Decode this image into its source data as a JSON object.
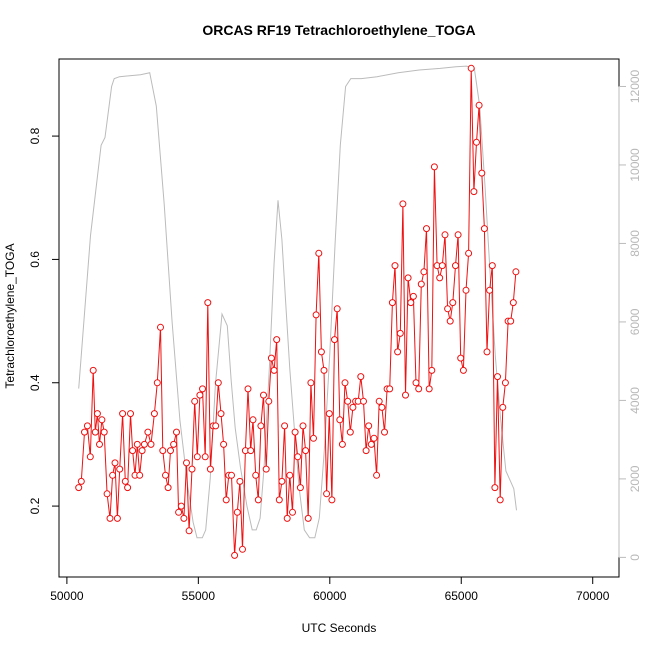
{
  "chart_data": {
    "type": "line",
    "title": "ORCAS RF19 Tetrachloroethylene_TOGA",
    "xlabel": "UTC Seconds",
    "ylabel": "Tetrachloroethylene_TOGA",
    "xlim": [
      49700,
      71000
    ],
    "ylim": [
      0.085,
      0.925
    ],
    "y2lim": [
      -500,
      12700
    ],
    "x_ticks": [
      50000,
      55000,
      60000,
      65000,
      70000
    ],
    "y_ticks": [
      0.2,
      0.4,
      0.6,
      0.8
    ],
    "y2_ticks": [
      0,
      2000,
      4000,
      6000,
      8000,
      10000,
      12000
    ],
    "colors": {
      "series": "#ee1111",
      "altitude": "#bbbbbb",
      "axis": "#000000",
      "right_axis": "#bbbbbb"
    },
    "series": [
      {
        "axis": "left",
        "points": [
          [
            50450,
            0.23
          ],
          [
            50550,
            0.24
          ],
          [
            50670,
            0.32
          ],
          [
            50780,
            0.33
          ],
          [
            50890,
            0.28
          ],
          [
            51000,
            0.42
          ],
          [
            51080,
            0.32
          ],
          [
            51160,
            0.35
          ],
          [
            51240,
            0.3
          ],
          [
            51330,
            0.34
          ],
          [
            51420,
            0.32
          ],
          [
            51530,
            0.22
          ],
          [
            51640,
            0.18
          ],
          [
            51740,
            0.25
          ],
          [
            51830,
            0.27
          ],
          [
            51920,
            0.18
          ],
          [
            52010,
            0.26
          ],
          [
            52120,
            0.35
          ],
          [
            52220,
            0.24
          ],
          [
            52310,
            0.23
          ],
          [
            52420,
            0.35
          ],
          [
            52500,
            0.29
          ],
          [
            52590,
            0.25
          ],
          [
            52680,
            0.3
          ],
          [
            52770,
            0.25
          ],
          [
            52860,
            0.29
          ],
          [
            52950,
            0.3
          ],
          [
            53080,
            0.32
          ],
          [
            53200,
            0.3
          ],
          [
            53330,
            0.35
          ],
          [
            53440,
            0.4
          ],
          [
            53560,
            0.49
          ],
          [
            53650,
            0.29
          ],
          [
            53750,
            0.25
          ],
          [
            53850,
            0.23
          ],
          [
            53940,
            0.29
          ],
          [
            54060,
            0.3
          ],
          [
            54170,
            0.32
          ],
          [
            54250,
            0.19
          ],
          [
            54350,
            0.2
          ],
          [
            54450,
            0.18
          ],
          [
            54550,
            0.27
          ],
          [
            54650,
            0.16
          ],
          [
            54760,
            0.26
          ],
          [
            54860,
            0.37
          ],
          [
            54960,
            0.28
          ],
          [
            55060,
            0.38
          ],
          [
            55160,
            0.39
          ],
          [
            55260,
            0.28
          ],
          [
            55360,
            0.53
          ],
          [
            55460,
            0.26
          ],
          [
            55560,
            0.33
          ],
          [
            55660,
            0.33
          ],
          [
            55760,
            0.4
          ],
          [
            55860,
            0.35
          ],
          [
            55960,
            0.3
          ],
          [
            56060,
            0.21
          ],
          [
            56160,
            0.25
          ],
          [
            56260,
            0.25
          ],
          [
            56380,
            0.12
          ],
          [
            56480,
            0.19
          ],
          [
            56580,
            0.24
          ],
          [
            56680,
            0.13
          ],
          [
            56790,
            0.29
          ],
          [
            56890,
            0.39
          ],
          [
            56990,
            0.29
          ],
          [
            57080,
            0.34
          ],
          [
            57180,
            0.25
          ],
          [
            57280,
            0.21
          ],
          [
            57380,
            0.33
          ],
          [
            57480,
            0.38
          ],
          [
            57580,
            0.26
          ],
          [
            57680,
            0.37
          ],
          [
            57780,
            0.44
          ],
          [
            57880,
            0.42
          ],
          [
            57980,
            0.47
          ],
          [
            58080,
            0.21
          ],
          [
            58180,
            0.24
          ],
          [
            58280,
            0.33
          ],
          [
            58380,
            0.18
          ],
          [
            58480,
            0.25
          ],
          [
            58580,
            0.19
          ],
          [
            58680,
            0.32
          ],
          [
            58780,
            0.28
          ],
          [
            58880,
            0.23
          ],
          [
            58980,
            0.33
          ],
          [
            59080,
            0.29
          ],
          [
            59180,
            0.18
          ],
          [
            59280,
            0.4
          ],
          [
            59380,
            0.31
          ],
          [
            59480,
            0.51
          ],
          [
            59580,
            0.61
          ],
          [
            59680,
            0.45
          ],
          [
            59780,
            0.42
          ],
          [
            59880,
            0.22
          ],
          [
            59980,
            0.35
          ],
          [
            60080,
            0.21
          ],
          [
            60180,
            0.47
          ],
          [
            60280,
            0.52
          ],
          [
            60380,
            0.34
          ],
          [
            60480,
            0.3
          ],
          [
            60580,
            0.4
          ],
          [
            60680,
            0.37
          ],
          [
            60780,
            0.32
          ],
          [
            60880,
            0.36
          ],
          [
            60980,
            0.37
          ],
          [
            61080,
            0.37
          ],
          [
            61180,
            0.41
          ],
          [
            61280,
            0.37
          ],
          [
            61380,
            0.29
          ],
          [
            61480,
            0.33
          ],
          [
            61580,
            0.3
          ],
          [
            61680,
            0.31
          ],
          [
            61780,
            0.25
          ],
          [
            61880,
            0.37
          ],
          [
            61980,
            0.36
          ],
          [
            62080,
            0.32
          ],
          [
            62180,
            0.39
          ],
          [
            62280,
            0.39
          ],
          [
            62380,
            0.53
          ],
          [
            62480,
            0.59
          ],
          [
            62580,
            0.45
          ],
          [
            62680,
            0.48
          ],
          [
            62780,
            0.69
          ],
          [
            62880,
            0.38
          ],
          [
            62980,
            0.57
          ],
          [
            63080,
            0.53
          ],
          [
            63180,
            0.54
          ],
          [
            63280,
            0.4
          ],
          [
            63380,
            0.39
          ],
          [
            63480,
            0.56
          ],
          [
            63580,
            0.58
          ],
          [
            63680,
            0.65
          ],
          [
            63780,
            0.39
          ],
          [
            63880,
            0.42
          ],
          [
            63980,
            0.75
          ],
          [
            64080,
            0.59
          ],
          [
            64180,
            0.57
          ],
          [
            64280,
            0.59
          ],
          [
            64380,
            0.64
          ],
          [
            64480,
            0.52
          ],
          [
            64580,
            0.5
          ],
          [
            64680,
            0.53
          ],
          [
            64780,
            0.59
          ],
          [
            64880,
            0.64
          ],
          [
            64980,
            0.44
          ],
          [
            65080,
            0.42
          ],
          [
            65180,
            0.55
          ],
          [
            65280,
            0.61
          ],
          [
            65380,
            0.91
          ],
          [
            65480,
            0.71
          ],
          [
            65580,
            0.79
          ],
          [
            65680,
            0.85
          ],
          [
            65780,
            0.74
          ],
          [
            65880,
            0.65
          ],
          [
            65980,
            0.45
          ],
          [
            66080,
            0.55
          ],
          [
            66180,
            0.59
          ],
          [
            66280,
            0.23
          ],
          [
            66380,
            0.41
          ],
          [
            66480,
            0.21
          ],
          [
            66580,
            0.36
          ],
          [
            66680,
            0.4
          ],
          [
            66780,
            0.5
          ],
          [
            66880,
            0.5
          ],
          [
            66980,
            0.53
          ],
          [
            67080,
            0.58
          ]
        ]
      },
      {
        "axis": "right",
        "points": [
          [
            50450,
            4300
          ],
          [
            50900,
            8200
          ],
          [
            51300,
            10500
          ],
          [
            51450,
            10700
          ],
          [
            51700,
            12000
          ],
          [
            51800,
            12200
          ],
          [
            52000,
            12250
          ],
          [
            52800,
            12300
          ],
          [
            53150,
            12350
          ],
          [
            53400,
            11500
          ],
          [
            53700,
            9000
          ],
          [
            54000,
            6000
          ],
          [
            54300,
            3500
          ],
          [
            54600,
            1800
          ],
          [
            54800,
            900
          ],
          [
            54950,
            500
          ],
          [
            55150,
            500
          ],
          [
            55280,
            700
          ],
          [
            55450,
            2000
          ],
          [
            55650,
            4400
          ],
          [
            55900,
            6200
          ],
          [
            56100,
            5900
          ],
          [
            56250,
            4500
          ],
          [
            56400,
            3300
          ],
          [
            56600,
            2300
          ],
          [
            56850,
            1300
          ],
          [
            57050,
            700
          ],
          [
            57200,
            700
          ],
          [
            57350,
            1000
          ],
          [
            57500,
            2300
          ],
          [
            57700,
            4800
          ],
          [
            57880,
            7500
          ],
          [
            58030,
            9100
          ],
          [
            58180,
            8100
          ],
          [
            58330,
            6400
          ],
          [
            58480,
            4800
          ],
          [
            58650,
            3300
          ],
          [
            58830,
            1800
          ],
          [
            59030,
            700
          ],
          [
            59230,
            500
          ],
          [
            59430,
            500
          ],
          [
            59600,
            1000
          ],
          [
            59800,
            2800
          ],
          [
            60000,
            5200
          ],
          [
            60200,
            8000
          ],
          [
            60400,
            10500
          ],
          [
            60600,
            12000
          ],
          [
            60800,
            12200
          ],
          [
            61200,
            12200
          ],
          [
            61800,
            12250
          ],
          [
            62600,
            12350
          ],
          [
            63400,
            12420
          ],
          [
            64200,
            12460
          ],
          [
            64800,
            12500
          ],
          [
            65200,
            12520
          ],
          [
            65500,
            12450
          ],
          [
            65700,
            11500
          ],
          [
            65900,
            9500
          ],
          [
            66100,
            7200
          ],
          [
            66300,
            5100
          ],
          [
            66500,
            3500
          ],
          [
            66700,
            2200
          ],
          [
            66900,
            1900
          ],
          [
            67000,
            1750
          ],
          [
            67100,
            1200
          ]
        ]
      }
    ]
  }
}
